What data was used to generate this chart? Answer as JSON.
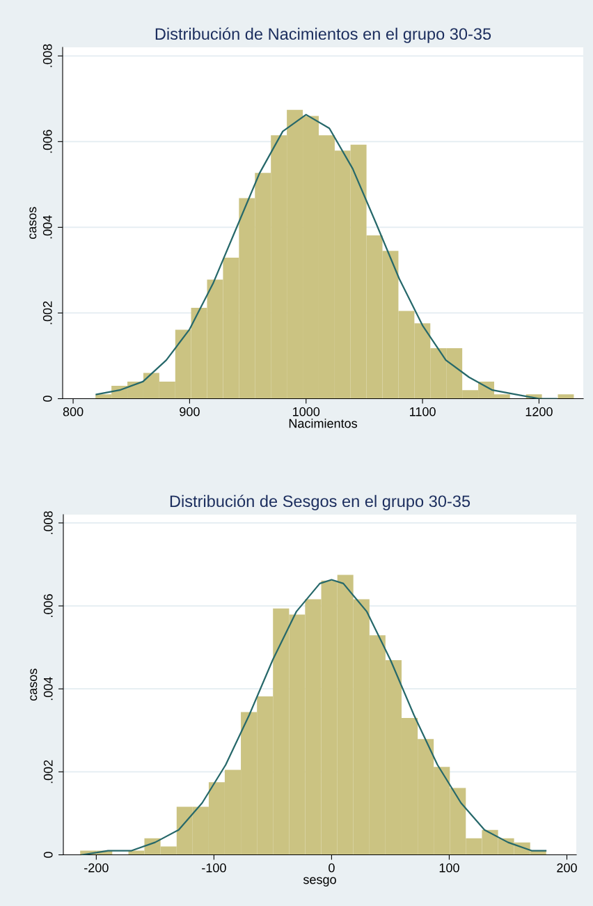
{
  "chart_data": [
    {
      "type": "histogram",
      "title": "Distribución de Nacimientos en el grupo 30-35",
      "xlabel": "Nacimientos",
      "ylabel": "casos",
      "xlim": [
        791,
        1238
      ],
      "xticks": [
        800,
        900,
        1000,
        1100,
        1200
      ],
      "ylim": [
        0,
        0.0082
      ],
      "yticks": [
        {
          "value": 0,
          "label": "0"
        },
        {
          "value": 0.002,
          "label": ".002"
        },
        {
          "value": 0.004,
          "label": ".004"
        },
        {
          "value": 0.006,
          "label": ".006"
        },
        {
          "value": 0.008,
          "label": ".008"
        }
      ],
      "grid": "y",
      "series": [
        {
          "type": "histogram",
          "color": "#cbc382",
          "bins": [
            819.2,
            832.9,
            846.6,
            860.3,
            874.0,
            887.7,
            901.3,
            915.0,
            928.7,
            942.4,
            956.1,
            969.8,
            983.5,
            997.2,
            1010.9,
            1024.6,
            1038.2,
            1051.9,
            1065.6,
            1079.3,
            1093.0,
            1106.7,
            1120.4,
            1134.1,
            1147.8,
            1161.5,
            1175.1,
            1188.8,
            1202.5,
            1216.2,
            1229.9
          ],
          "values": [
            0.0001,
            0.0003,
            0.0004,
            0.0006,
            0.0004,
            0.00161,
            0.00212,
            0.00278,
            0.00329,
            0.00468,
            0.00527,
            0.00615,
            0.00674,
            0.0066,
            0.00615,
            0.00579,
            0.00593,
            0.00381,
            0.00345,
            0.00205,
            0.00176,
            0.00118,
            0.00118,
            0.0002,
            0.0004,
            0.0001,
            0,
            0.0001,
            0,
            0.0001
          ]
        },
        {
          "type": "line",
          "color": "#26686a",
          "x": [
            820,
            840,
            860,
            880,
            900,
            920,
            940,
            960,
            980,
            1000,
            1020,
            1040,
            1060,
            1080,
            1100,
            1120,
            1140,
            1160,
            1180,
            1200,
            1215
          ],
          "values": [
            0.0001,
            0.0002,
            0.0004,
            0.0009,
            0.00162,
            0.00268,
            0.00397,
            0.00526,
            0.00624,
            0.00663,
            0.00631,
            0.00537,
            0.0041,
            0.0028,
            0.00171,
            0.0009,
            0.0005,
            0.0002,
            0.0001,
            0,
            0
          ]
        }
      ]
    },
    {
      "type": "histogram",
      "title": "Distribución de Sesgos en el grupo 30-35",
      "xlabel": "sesgo",
      "ylabel": "casos",
      "xlim": [
        -228,
        208
      ],
      "xticks": [
        -200,
        -100,
        0,
        100,
        200
      ],
      "ylim": [
        0,
        0.0082
      ],
      "yticks": [
        {
          "value": 0,
          "label": "0"
        },
        {
          "value": 0.002,
          "label": ".002"
        },
        {
          "value": 0.004,
          "label": ".004"
        },
        {
          "value": 0.006,
          "label": ".006"
        },
        {
          "value": 0.008,
          "label": ".008"
        }
      ],
      "grid": "y",
      "series": [
        {
          "type": "histogram",
          "color": "#cbc382",
          "bins": [
            -213.7,
            -200.0,
            -186.4,
            -172.7,
            -159.1,
            -145.4,
            -131.7,
            -118.1,
            -104.4,
            -90.8,
            -77.1,
            -63.4,
            -49.8,
            -36.1,
            -22.5,
            -8.8,
            4.9,
            18.5,
            32.2,
            45.8,
            59.5,
            73.2,
            86.8,
            100.5,
            114.1,
            127.8,
            141.5,
            155.1,
            168.8,
            182.4
          ],
          "values": [
            0.0001,
            0.0001,
            0,
            0.0001,
            0.0004,
            0.0002,
            0.00116,
            0.00116,
            0.00175,
            0.00205,
            0.00344,
            0.00382,
            0.00594,
            0.00579,
            0.00616,
            0.00661,
            0.00675,
            0.00616,
            0.00529,
            0.00469,
            0.0033,
            0.00279,
            0.00212,
            0.00161,
            0.0004,
            0.0006,
            0.0004,
            0.0003,
            0.0001
          ]
        },
        {
          "type": "line",
          "color": "#26686a",
          "x": [
            -212,
            -190,
            -170,
            -150,
            -130,
            -110,
            -90,
            -70,
            -50,
            -30,
            -10,
            0,
            10,
            30,
            50,
            70,
            90,
            110,
            130,
            150,
            170,
            182
          ],
          "values": [
            0,
            0.0001,
            0.0001,
            0.0003,
            0.0006,
            0.00125,
            0.00217,
            0.00337,
            0.0047,
            0.00586,
            0.00654,
            0.00663,
            0.00654,
            0.00586,
            0.0047,
            0.00337,
            0.00217,
            0.00125,
            0.0006,
            0.0003,
            0.0001,
            0.0001
          ]
        }
      ]
    }
  ]
}
